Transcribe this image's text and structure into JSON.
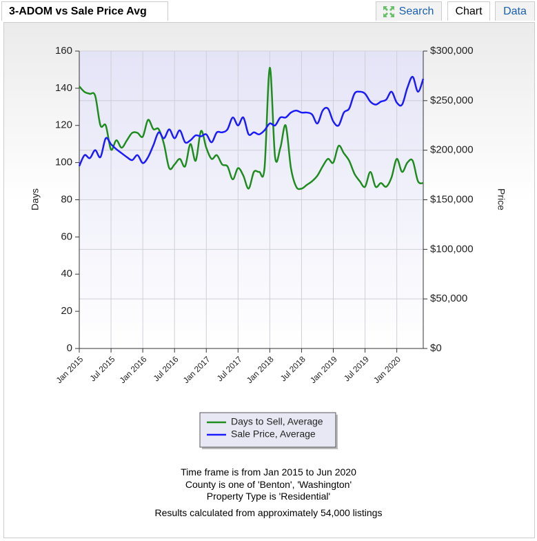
{
  "header": {
    "title": "3-ADOM vs Sale Price Avg"
  },
  "tabs": [
    "Search",
    "Chart",
    "Data"
  ],
  "chart_data": {
    "type": "line",
    "ylabel": "Days",
    "y2label": "Price",
    "categories": [
      "Jan 2015",
      null,
      null,
      null,
      null,
      null,
      "Jul 2015",
      null,
      null,
      null,
      null,
      null,
      "Jan 2016",
      null,
      null,
      null,
      null,
      null,
      "Jul 2016",
      null,
      null,
      null,
      null,
      null,
      "Jan 2017",
      null,
      null,
      null,
      null,
      null,
      "Jul 2017",
      null,
      null,
      null,
      null,
      null,
      "Jan 2018",
      null,
      null,
      null,
      null,
      null,
      "Jul 2018",
      null,
      null,
      null,
      null,
      null,
      "Jan 2019",
      null,
      null,
      null,
      null,
      null,
      "Jul 2019",
      null,
      null,
      null,
      null,
      null,
      "Jan 2020",
      null,
      null,
      null,
      null,
      null
    ],
    "ylim": [
      0,
      160
    ],
    "yticks": [
      0,
      20,
      40,
      60,
      80,
      100,
      120,
      140,
      160
    ],
    "y2lim": [
      0,
      300000
    ],
    "y2ticks": [
      {
        "value": 0,
        "label": "$0"
      },
      {
        "value": 50000,
        "label": "$50,000"
      },
      {
        "value": 100000,
        "label": "$100,000"
      },
      {
        "value": 150000,
        "label": "$150,000"
      },
      {
        "value": 200000,
        "label": "$200,000"
      },
      {
        "value": 250000,
        "label": "$250,000"
      },
      {
        "value": 300000,
        "label": "$300,000"
      }
    ],
    "grid": true,
    "legend": "bottom",
    "series": [
      {
        "name": "Days to Sell, Average",
        "color": "#1e8c1e",
        "values": [
          141,
          138,
          137,
          136,
          120,
          120,
          107,
          112,
          108,
          112,
          116,
          116,
          114,
          123,
          118,
          118,
          110,
          97,
          99,
          102,
          98,
          110,
          101,
          117,
          108,
          102,
          104,
          99,
          98,
          91,
          97,
          93,
          86,
          95,
          95,
          97,
          151,
          103,
          108,
          120,
          97,
          87,
          86,
          88,
          90,
          93,
          98,
          102,
          100,
          109,
          105,
          101,
          94,
          90,
          87,
          95,
          87,
          89,
          87,
          92,
          102,
          95,
          100,
          101,
          90,
          89
        ]
      },
      {
        "name": "Sale Price, Average",
        "color": "#1a1aff",
        "axis": "y2",
        "values": [
          184000,
          195000,
          192000,
          200000,
          193000,
          212000,
          206000,
          201000,
          197000,
          193000,
          190000,
          195000,
          187000,
          193000,
          205000,
          218000,
          212000,
          221000,
          212000,
          220000,
          208000,
          210000,
          215000,
          214000,
          216000,
          208000,
          218000,
          218000,
          221000,
          233000,
          225000,
          233000,
          216000,
          218000,
          216000,
          220000,
          227000,
          225000,
          233000,
          233000,
          238000,
          240000,
          238000,
          238000,
          236000,
          227000,
          240000,
          242000,
          229000,
          225000,
          238000,
          242000,
          257000,
          259000,
          257000,
          249000,
          246000,
          249000,
          251000,
          259000,
          248000,
          246000,
          263000,
          274000,
          259000,
          272000
        ]
      }
    ]
  },
  "notes": [
    "Time frame is from Jan 2015 to Jun 2020",
    "County is one of 'Benton', 'Washington'",
    "Property Type is 'Residential'",
    "Results calculated from approximately 54,000 listings"
  ]
}
